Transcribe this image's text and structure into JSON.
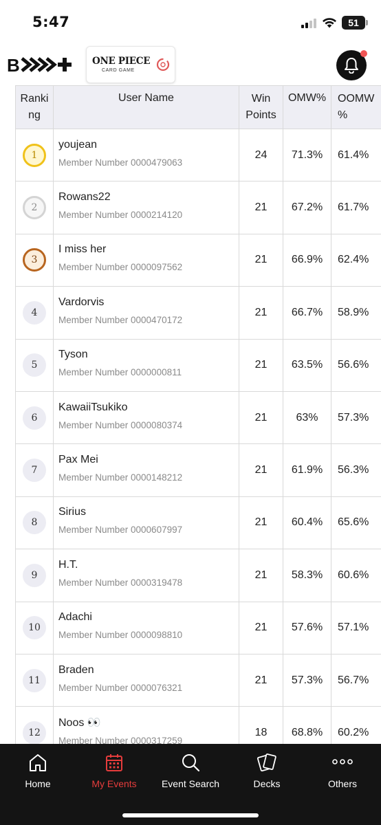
{
  "status_bar": {
    "time": "5:47",
    "battery": "51"
  },
  "header": {
    "app_logo": "BCG+",
    "game_logo_title": "ONE PIECE",
    "game_logo_subtitle": "CARD GAME",
    "notification_dot": true
  },
  "table": {
    "headers": {
      "ranking": "Ranki\nng",
      "user_name": "User Name",
      "win_points": "Win\nPoints",
      "omw": "OMW%",
      "oomw": "OOMW\n%"
    },
    "member_prefix": "Member Number ",
    "rows": [
      {
        "rank": "1",
        "medal": "gold",
        "name": "youjean",
        "member": "Member Number 0000479063",
        "win_points": "24",
        "omw": "71.3%",
        "oomw": "61.4%"
      },
      {
        "rank": "2",
        "medal": "silver",
        "name": "Rowans22",
        "member": "Member Number 0000214120",
        "win_points": "21",
        "omw": "67.2%",
        "oomw": "61.7%"
      },
      {
        "rank": "3",
        "medal": "bronze",
        "name": "I miss her",
        "member": "Member Number 0000097562",
        "win_points": "21",
        "omw": "66.9%",
        "oomw": "62.4%"
      },
      {
        "rank": "4",
        "medal": "",
        "name": "Vardorvis",
        "member": "Member Number 0000470172",
        "win_points": "21",
        "omw": "66.7%",
        "oomw": "58.9%"
      },
      {
        "rank": "5",
        "medal": "",
        "name": "Tyson",
        "member": "Member Number 0000000811",
        "win_points": "21",
        "omw": "63.5%",
        "oomw": "56.6%"
      },
      {
        "rank": "6",
        "medal": "",
        "name": "KawaiiTsukiko",
        "member": "Member Number 0000080374",
        "win_points": "21",
        "omw": "63%",
        "oomw": "57.3%"
      },
      {
        "rank": "7",
        "medal": "",
        "name": "Pax Mei",
        "member": "Member Number 0000148212",
        "win_points": "21",
        "omw": "61.9%",
        "oomw": "56.3%"
      },
      {
        "rank": "8",
        "medal": "",
        "name": "Sirius",
        "member": "Member Number 0000607997",
        "win_points": "21",
        "omw": "60.4%",
        "oomw": "65.6%"
      },
      {
        "rank": "9",
        "medal": "",
        "name": "H.T.",
        "member": "Member Number 0000319478",
        "win_points": "21",
        "omw": "58.3%",
        "oomw": "60.6%"
      },
      {
        "rank": "10",
        "medal": "",
        "name": "Adachi",
        "member": "Member Number 0000098810",
        "win_points": "21",
        "omw": "57.6%",
        "oomw": "57.1%"
      },
      {
        "rank": "11",
        "medal": "",
        "name": "Braden",
        "member": "Member Number 0000076321",
        "win_points": "21",
        "omw": "57.3%",
        "oomw": "56.7%"
      },
      {
        "rank": "12",
        "medal": "",
        "name": "Noos 👀",
        "member": "Member Number 0000317259",
        "win_points": "18",
        "omw": "68.8%",
        "oomw": "60.2%"
      }
    ]
  },
  "bottom_nav": {
    "items": [
      {
        "id": "home",
        "label": "Home",
        "icon": "home-icon",
        "active": false
      },
      {
        "id": "my-events",
        "label": "My Events",
        "icon": "calendar-icon",
        "active": true
      },
      {
        "id": "event-search",
        "label": "Event Search",
        "icon": "search-icon",
        "active": false
      },
      {
        "id": "decks",
        "label": "Decks",
        "icon": "cards-icon",
        "active": false
      },
      {
        "id": "others",
        "label": "Others",
        "icon": "more-icon",
        "active": false
      }
    ],
    "active_color": "#e53c3c"
  },
  "colors": {
    "header_bg": "#eeeef4",
    "nav_bg": "#141414",
    "gold": "#f0c21a",
    "silver": "#d4d4d4",
    "bronze": "#b8651f"
  }
}
